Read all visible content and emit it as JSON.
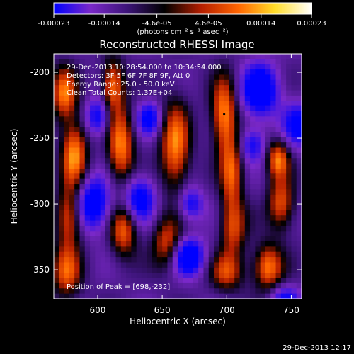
{
  "chart_data": {
    "type": "heatmap",
    "title": "Reconstructed RHESSI Image",
    "xlabel": "Heliocentric X (arcsec)",
    "ylabel": "Heliocentric Y (arcsec)",
    "xlim": [
      566,
      758
    ],
    "ylim": [
      -372,
      -186
    ],
    "x_ticks": [
      600,
      650,
      700,
      750
    ],
    "y_ticks": [
      -200,
      -250,
      -300,
      -350
    ],
    "grid": false,
    "colorbar": {
      "tick_values": [
        -0.00023,
        -0.00014,
        -4.6e-05,
        4.6e-05,
        0.00014,
        0.00023
      ],
      "tick_labels": [
        "-0.00023",
        "-0.00014",
        "-4.6e-05",
        "4.6e-05",
        "0.00014",
        "0.00023"
      ],
      "unit_label": "(photons cm⁻² s⁻¹ asec⁻²)",
      "colors": [
        "#0000ff",
        "#7a28c8",
        "#3c1478",
        "#000000",
        "#b41e00",
        "#ff6400",
        "#ffdc28",
        "#ffffff"
      ]
    },
    "annotations": [
      "29-Dec-2013 10:28:54.000 to 10:34:54.000",
      "Detectors: 3F 5F 6F 7F 8F 9F, Att 0",
      "Energy Range: 25.0 - 50.0 keV",
      "Clean    Total Counts: 1.37E+04"
    ],
    "peak_label": "Position of Peak = [698,-232]",
    "peak": [
      698,
      -232
    ],
    "hot_blobs": [
      {
        "x": 574,
        "y": -216,
        "sx": 7,
        "sy": 14,
        "amp": 0.9
      },
      {
        "x": 582,
        "y": -262,
        "sx": 7,
        "sy": 18,
        "amp": 1.0
      },
      {
        "x": 578,
        "y": -310,
        "sx": 7,
        "sy": 16,
        "amp": 0.85
      },
      {
        "x": 576,
        "y": -352,
        "sx": 8,
        "sy": 14,
        "amp": 0.8
      },
      {
        "x": 612,
        "y": -210,
        "sx": 6,
        "sy": 14,
        "amp": 0.9
      },
      {
        "x": 618,
        "y": -256,
        "sx": 7,
        "sy": 20,
        "amp": 0.95
      },
      {
        "x": 620,
        "y": -320,
        "sx": 7,
        "sy": 14,
        "amp": 0.85
      },
      {
        "x": 660,
        "y": -256,
        "sx": 8,
        "sy": 24,
        "amp": 0.95
      },
      {
        "x": 654,
        "y": -330,
        "sx": 8,
        "sy": 14,
        "amp": 0.75
      },
      {
        "x": 698,
        "y": -232,
        "sx": 7,
        "sy": 20,
        "amp": 1.0
      },
      {
        "x": 704,
        "y": -276,
        "sx": 6,
        "sy": 18,
        "amp": 0.8
      },
      {
        "x": 705,
        "y": -318,
        "sx": 7,
        "sy": 16,
        "amp": 0.75
      },
      {
        "x": 740,
        "y": -266,
        "sx": 6,
        "sy": 10,
        "amp": 0.9
      },
      {
        "x": 742,
        "y": -300,
        "sx": 7,
        "sy": 14,
        "amp": 0.8
      },
      {
        "x": 732,
        "y": -348,
        "sx": 8,
        "sy": 12,
        "amp": 0.95
      },
      {
        "x": 700,
        "y": -352,
        "sx": 9,
        "sy": 10,
        "amp": 0.7
      }
    ],
    "cold_blobs": [
      {
        "x": 726,
        "y": -214,
        "sx": 10,
        "sy": 14,
        "amp": 1.0
      },
      {
        "x": 670,
        "y": -340,
        "sx": 9,
        "sy": 10,
        "amp": 0.95
      },
      {
        "x": 596,
        "y": -300,
        "sx": 10,
        "sy": 14,
        "amp": 0.9
      },
      {
        "x": 632,
        "y": -296,
        "sx": 9,
        "sy": 12,
        "amp": 0.8
      },
      {
        "x": 640,
        "y": -235,
        "sx": 7,
        "sy": 9,
        "amp": 0.7
      },
      {
        "x": 720,
        "y": -255,
        "sx": 7,
        "sy": 9,
        "amp": 0.6
      },
      {
        "x": 600,
        "y": -234,
        "sx": 7,
        "sy": 10,
        "amp": 0.7
      },
      {
        "x": 755,
        "y": -240,
        "sx": 8,
        "sy": 12,
        "amp": 0.7
      },
      {
        "x": 672,
        "y": -300,
        "sx": 7,
        "sy": 9,
        "amp": 0.65
      },
      {
        "x": 745,
        "y": -372,
        "sx": 8,
        "sy": 7,
        "amp": 0.6
      }
    ]
  },
  "footer": {
    "timestamp": "29-Dec-2013 12:17"
  }
}
